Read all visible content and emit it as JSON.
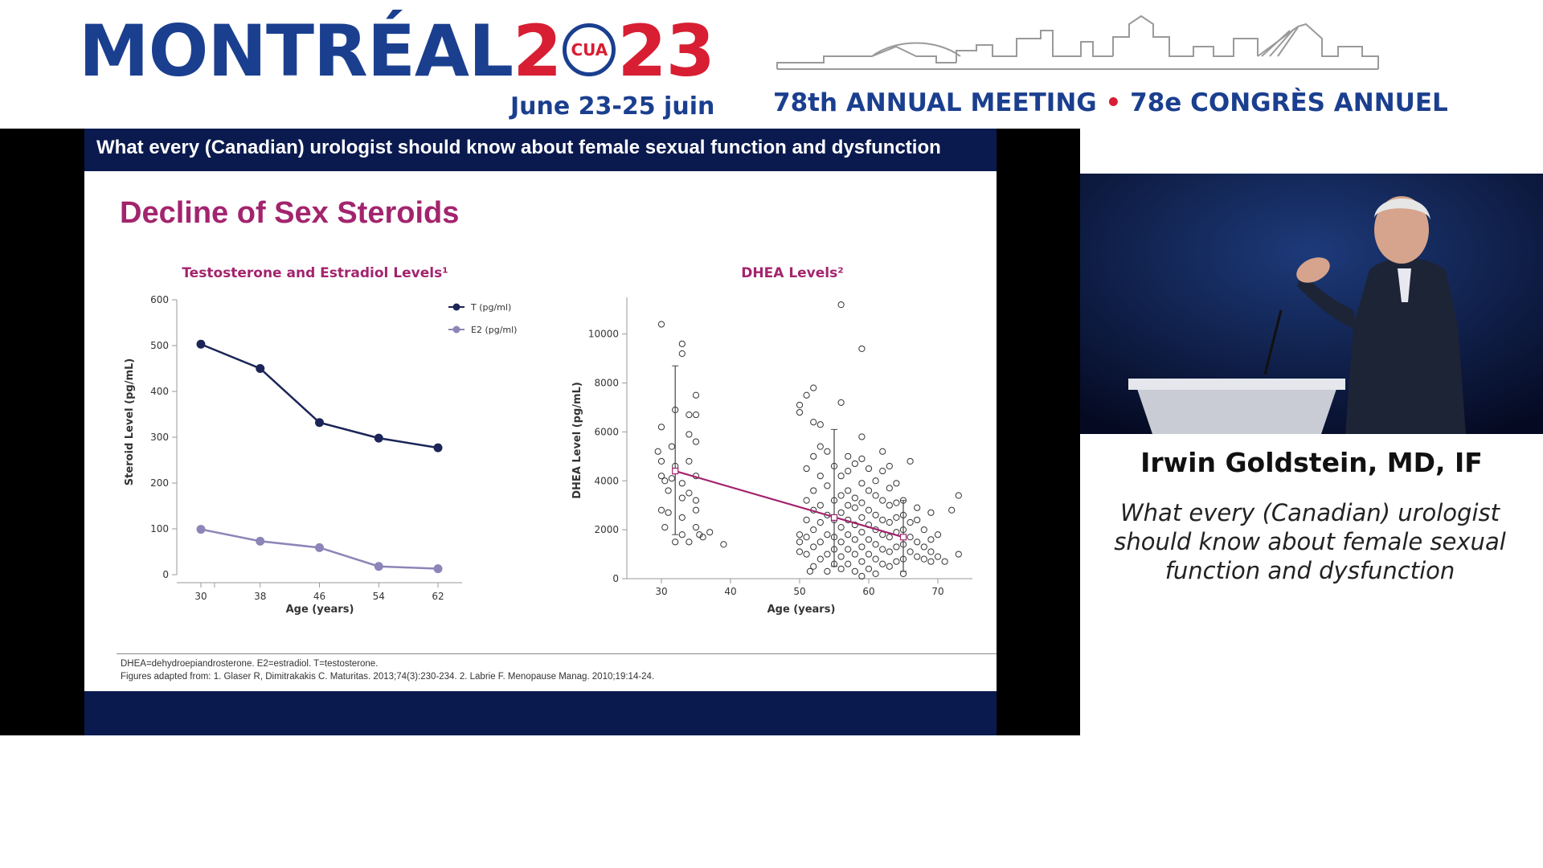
{
  "event": {
    "brand_left": "MONTRÉAL",
    "brand_mid": "2",
    "seal_text": "CUA",
    "brand_right": "23",
    "dates": "June 23-25 juin",
    "meeting_en": "78th ANNUAL MEETING",
    "meeting_sep": "•",
    "meeting_fr": "78e CONGRÈS ANNUEL"
  },
  "slide": {
    "header": "What every (Canadian) urologist should know about female sexual function and dysfunction",
    "title": "Decline of Sex Steroids",
    "footnote_line1": "DHEA=dehydroepiandrosterone. E2=estradiol. T=testosterone.",
    "footnote_line2": "Figures adapted from: 1. Glaser R, Dimitrakakis C. Maturitas. 2013;74(3):230-234. 2. Labrie F. Menopause Manag. 2010;19:14-24."
  },
  "speaker": {
    "name": "Irwin Goldstein, MD, IF",
    "talk_title": "What every (Canadian) urologist should know about female sexual function and dysfunction"
  },
  "colors": {
    "brand_blue": "#1b3f8f",
    "brand_red": "#d81e32",
    "slide_navy": "#0b1a4e",
    "title_magenta": "#a3246e",
    "series_T": "#1b2557",
    "series_E2": "#8b85b8"
  },
  "chart_data": [
    {
      "type": "line",
      "title": "Testosterone and Estradiol Levels¹",
      "xlabel": "Age (years)",
      "ylabel": "Steroid Level (pg/mL)",
      "x": [
        30,
        38,
        46,
        54,
        62
      ],
      "ylim": [
        0,
        600
      ],
      "yticks": [
        0,
        100,
        200,
        300,
        400,
        500,
        600
      ],
      "series": [
        {
          "name": "T (pg/ml)",
          "values": [
            503,
            450,
            332,
            298,
            277
          ]
        },
        {
          "name": "E2 (pg/ml)",
          "values": [
            99,
            73,
            59,
            18,
            13
          ]
        }
      ],
      "legend": "top-right"
    },
    {
      "type": "scatter",
      "title": "DHEA Levels²",
      "xlabel": "Age (years)",
      "ylabel": "DHEA Level (pg/mL)",
      "xlim": [
        25,
        75
      ],
      "xticks": [
        30,
        40,
        50,
        60,
        70
      ],
      "ylim": [
        0,
        11500
      ],
      "yticks": [
        0,
        2000,
        4000,
        6000,
        8000,
        10000
      ],
      "points": [
        [
          30,
          10400
        ],
        [
          32,
          6900
        ],
        [
          30,
          6200
        ],
        [
          29.5,
          5200
        ],
        [
          30,
          4800
        ],
        [
          30,
          4200
        ],
        [
          30.5,
          4000
        ],
        [
          31,
          3600
        ],
        [
          30,
          2800
        ],
        [
          31,
          2700
        ],
        [
          30.5,
          2100
        ],
        [
          32,
          1500
        ],
        [
          32,
          4600
        ],
        [
          31.5,
          4100
        ],
        [
          31.5,
          5400
        ],
        [
          33,
          1800
        ],
        [
          33,
          3300
        ],
        [
          33,
          2500
        ],
        [
          33,
          9600
        ],
        [
          33,
          9200
        ],
        [
          34,
          1500
        ],
        [
          34,
          5900
        ],
        [
          34,
          6700
        ],
        [
          35,
          7500
        ],
        [
          35,
          6700
        ],
        [
          35,
          5600
        ],
        [
          35,
          4200
        ],
        [
          35,
          3200
        ],
        [
          35,
          2800
        ],
        [
          35,
          2100
        ],
        [
          35.5,
          1800
        ],
        [
          36,
          1700
        ],
        [
          37,
          1900
        ],
        [
          39,
          1400
        ],
        [
          34,
          3500
        ],
        [
          33,
          3900
        ],
        [
          34,
          4800
        ],
        [
          50,
          7100
        ],
        [
          50,
          6800
        ],
        [
          50,
          1800
        ],
        [
          50,
          1500
        ],
        [
          50,
          1100
        ],
        [
          51,
          7500
        ],
        [
          51,
          4500
        ],
        [
          51,
          3200
        ],
        [
          51,
          2400
        ],
        [
          51,
          1700
        ],
        [
          51,
          1000
        ],
        [
          51.5,
          300
        ],
        [
          52,
          7800
        ],
        [
          52,
          6400
        ],
        [
          52,
          5000
        ],
        [
          52,
          3600
        ],
        [
          52,
          2800
        ],
        [
          52,
          2000
        ],
        [
          52,
          1300
        ],
        [
          52,
          500
        ],
        [
          53,
          6300
        ],
        [
          53,
          5400
        ],
        [
          53,
          4200
        ],
        [
          53,
          3000
        ],
        [
          53,
          2300
        ],
        [
          53,
          1500
        ],
        [
          53,
          800
        ],
        [
          54,
          5200
        ],
        [
          54,
          3800
        ],
        [
          54,
          2600
        ],
        [
          54,
          1800
        ],
        [
          54,
          1000
        ],
        [
          54,
          300
        ],
        [
          55,
          4600
        ],
        [
          55,
          3200
        ],
        [
          55,
          2400
        ],
        [
          55,
          1700
        ],
        [
          55,
          1200
        ],
        [
          55,
          600
        ],
        [
          56,
          11200
        ],
        [
          56,
          7200
        ],
        [
          56,
          4200
        ],
        [
          56,
          3400
        ],
        [
          56,
          2700
        ],
        [
          56,
          2100
        ],
        [
          56,
          1500
        ],
        [
          56,
          900
        ],
        [
          56,
          400
        ],
        [
          57,
          5000
        ],
        [
          57,
          4400
        ],
        [
          57,
          3600
        ],
        [
          57,
          3000
        ],
        [
          57,
          2400
        ],
        [
          57,
          1800
        ],
        [
          57,
          1200
        ],
        [
          57,
          600
        ],
        [
          58,
          4700
        ],
        [
          58,
          3300
        ],
        [
          58,
          2900
        ],
        [
          58,
          2200
        ],
        [
          58,
          1600
        ],
        [
          58,
          1000
        ],
        [
          58,
          300
        ],
        [
          59,
          9400
        ],
        [
          59,
          5800
        ],
        [
          59,
          4900
        ],
        [
          59,
          3900
        ],
        [
          59,
          3100
        ],
        [
          59,
          2500
        ],
        [
          59,
          1900
        ],
        [
          59,
          1300
        ],
        [
          59,
          700
        ],
        [
          59,
          100
        ],
        [
          60,
          4500
        ],
        [
          60,
          3600
        ],
        [
          60,
          2800
        ],
        [
          60,
          2200
        ],
        [
          60,
          1600
        ],
        [
          60,
          1000
        ],
        [
          60,
          400
        ],
        [
          61,
          4000
        ],
        [
          61,
          3400
        ],
        [
          61,
          2600
        ],
        [
          61,
          2000
        ],
        [
          61,
          1400
        ],
        [
          61,
          800
        ],
        [
          61,
          200
        ],
        [
          62,
          5200
        ],
        [
          62,
          4400
        ],
        [
          62,
          3200
        ],
        [
          62,
          2400
        ],
        [
          62,
          1800
        ],
        [
          62,
          1200
        ],
        [
          62,
          600
        ],
        [
          63,
          4600
        ],
        [
          63,
          3700
        ],
        [
          63,
          3000
        ],
        [
          63,
          2300
        ],
        [
          63,
          1700
        ],
        [
          63,
          1100
        ],
        [
          63,
          500
        ],
        [
          64,
          3900
        ],
        [
          64,
          3100
        ],
        [
          64,
          2500
        ],
        [
          64,
          1900
        ],
        [
          64,
          1300
        ],
        [
          64,
          700
        ],
        [
          65,
          3200
        ],
        [
          65,
          2600
        ],
        [
          65,
          2000
        ],
        [
          65,
          1400
        ],
        [
          65,
          800
        ],
        [
          65,
          200
        ],
        [
          66,
          4800
        ],
        [
          66,
          2300
        ],
        [
          66,
          1700
        ],
        [
          66,
          1100
        ],
        [
          67,
          2900
        ],
        [
          67,
          2400
        ],
        [
          67,
          1500
        ],
        [
          67,
          900
        ],
        [
          68,
          2000
        ],
        [
          68,
          1300
        ],
        [
          68,
          800
        ],
        [
          69,
          2700
        ],
        [
          69,
          1600
        ],
        [
          69,
          1100
        ],
        [
          69,
          700
        ],
        [
          70,
          1800
        ],
        [
          70,
          900
        ],
        [
          71,
          700
        ],
        [
          72,
          2800
        ],
        [
          73,
          3400
        ],
        [
          73,
          1000
        ]
      ],
      "trend": {
        "x": [
          32,
          65
        ],
        "y": [
          4400,
          1700
        ],
        "color": "#a3246e"
      },
      "error_bars": [
        {
          "x": 32,
          "y": 4400,
          "low": 1800,
          "high": 8700
        },
        {
          "x": 55,
          "y": 2500,
          "low": 500,
          "high": 6100
        },
        {
          "x": 65,
          "y": 1700,
          "low": 300,
          "high": 3200
        }
      ]
    }
  ]
}
